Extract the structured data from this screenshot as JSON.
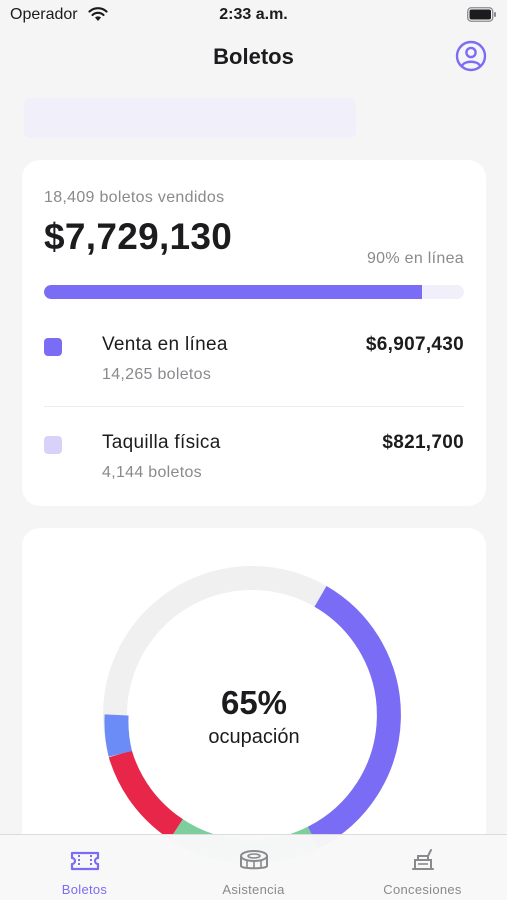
{
  "status_bar": {
    "carrier": "Operador",
    "time": "2:33 a.m."
  },
  "nav": {
    "title": "Boletos",
    "profile_icon": "person-circle-icon"
  },
  "colors": {
    "accent": "#7b6cf6",
    "accent_light": "#d8d2fb",
    "red": "#e8264a",
    "green": "#7ccf9c",
    "blue": "#6b8cf6",
    "track": "#f0f0f0"
  },
  "sales": {
    "sold_count": "18,409 boletos vendidos",
    "total": "$7,729,130",
    "online_percent_label": "90% en línea",
    "online_fraction": 0.9,
    "channels": [
      {
        "label": "Venta en línea",
        "tickets": "14,265 boletos",
        "amount": "$6,907,430"
      },
      {
        "label": "Taquilla física",
        "tickets": "4,144 boletos",
        "amount": "$821,700"
      }
    ]
  },
  "occupancy": {
    "value": "65%",
    "label": "ocupación",
    "fraction": 0.65
  },
  "tabs": [
    {
      "label": "Boletos",
      "icon": "ticket-icon",
      "active": true
    },
    {
      "label": "Asistencia",
      "icon": "stadium-icon",
      "active": false
    },
    {
      "label": "Concesiones",
      "icon": "food-cart-icon",
      "active": false
    }
  ]
}
